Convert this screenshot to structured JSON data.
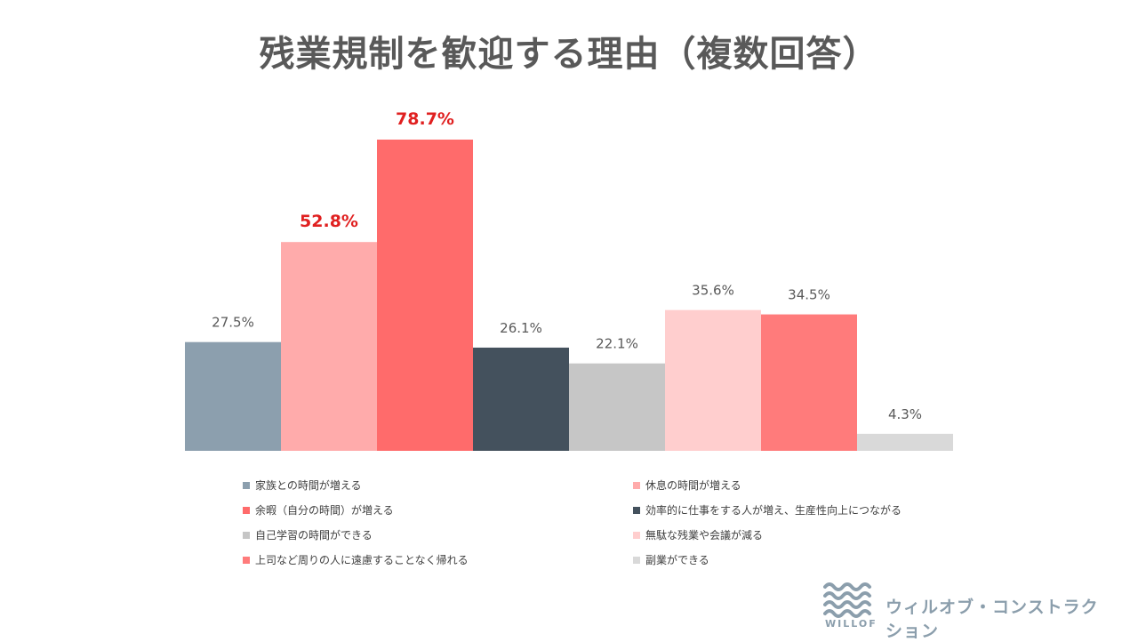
{
  "chart_data": {
    "type": "bar",
    "title": "残業規制を歓迎する理由（複数回答）",
    "unit": "%",
    "ylim": [
      0,
      80
    ],
    "categories": [
      "家族との時間が増える",
      "休息の時間が増える",
      "余暇（自分の時間）が増える",
      "効率的に仕事をする人が増え、生産性向上につながる",
      "自己学習の時間ができる",
      "無駄な残業や会議が減る",
      "上司など周りの人に遠慮することなく帰れる",
      "副業ができる"
    ],
    "values": [
      27.5,
      52.8,
      78.7,
      26.1,
      22.1,
      35.6,
      34.5,
      4.3
    ],
    "value_labels": [
      "27.5%",
      "52.8%",
      "78.7%",
      "26.1%",
      "22.1%",
      "35.6%",
      "34.5%",
      "4.3%"
    ],
    "colors": [
      "#8c9fae",
      "#ffabab",
      "#ff6b6b",
      "#44515d",
      "#c6c6c6",
      "#ffcece",
      "#ff7b7b",
      "#d9d9d9"
    ],
    "highlight": [
      false,
      true,
      true,
      false,
      false,
      false,
      false,
      false
    ],
    "highlight_color": "#e02020",
    "label_color": "#595959",
    "legend": [
      {
        "label": "家族との時間が増える",
        "color": "#8c9fae"
      },
      {
        "label": "休息の時間が増える",
        "color": "#ffabab"
      },
      {
        "label": "余暇（自分の時間）が増える",
        "color": "#ff6b6b"
      },
      {
        "label": "効率的に仕事をする人が増え、生産性向上につながる",
        "color": "#44515d"
      },
      {
        "label": "自己学習の時間ができる",
        "color": "#c6c6c6"
      },
      {
        "label": "無駄な残業や会議が減る",
        "color": "#ffcece"
      },
      {
        "label": "上司など周りの人に遠慮することなく帰れる",
        "color": "#ff7b7b"
      },
      {
        "label": "副業ができる",
        "color": "#d9d9d9"
      }
    ],
    "legend_placement": "bottom, two columns",
    "grid": false
  },
  "logo": {
    "wordmark": "WILLOF",
    "company": "ウィルオブ・コンストラクション",
    "color": "#8b9eac"
  }
}
